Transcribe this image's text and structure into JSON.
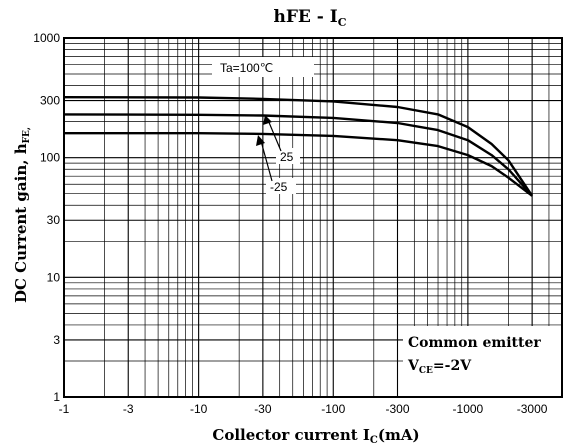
{
  "chart_data": {
    "type": "line",
    "title": {
      "main": "hFE - I",
      "sub": "C"
    },
    "xlabel": {
      "main": "Collector current I",
      "sub": "C",
      "tail": "(mA)"
    },
    "ylabel": {
      "main": "DC Current gain, h",
      "sub": "FE,"
    },
    "x_scale": "log",
    "y_scale": "log",
    "xlim": [
      -1,
      -5000
    ],
    "ylim": [
      1,
      1000
    ],
    "x_ticks": [
      {
        "value": 1,
        "label": "-1"
      },
      {
        "value": 3,
        "label": "-3"
      },
      {
        "value": 10,
        "label": "-10"
      },
      {
        "value": 30,
        "label": "-30"
      },
      {
        "value": 100,
        "label": "-100"
      },
      {
        "value": 300,
        "label": "-300"
      },
      {
        "value": 1000,
        "label": "-1000"
      },
      {
        "value": 3000,
        "label": "-3000"
      }
    ],
    "y_ticks": [
      {
        "value": 1,
        "label": "1"
      },
      {
        "value": 3,
        "label": "3"
      },
      {
        "value": 10,
        "label": "10"
      },
      {
        "value": 30,
        "label": "30"
      },
      {
        "value": 100,
        "label": "100"
      },
      {
        "value": 300,
        "label": "300"
      },
      {
        "value": 1000,
        "label": "1000"
      }
    ],
    "grid": true,
    "series": [
      {
        "label": "Ta=100℃",
        "x": [
          1,
          10,
          30,
          100,
          300,
          600,
          1000,
          1500,
          2000,
          3000
        ],
        "y": [
          320,
          318,
          310,
          295,
          265,
          230,
          180,
          130,
          95,
          48
        ]
      },
      {
        "label": "25",
        "x": [
          1,
          10,
          30,
          100,
          300,
          600,
          1000,
          1500,
          2000,
          3000
        ],
        "y": [
          230,
          228,
          225,
          215,
          195,
          170,
          140,
          105,
          80,
          48
        ]
      },
      {
        "label": "-25",
        "x": [
          1,
          10,
          30,
          100,
          300,
          600,
          1000,
          1500,
          2000,
          3000
        ],
        "y": [
          160,
          160,
          158,
          152,
          140,
          125,
          105,
          85,
          68,
          48
        ]
      }
    ],
    "annotations": [
      {
        "text": "Common emitter"
      },
      {
        "text_main": "V",
        "text_sub": "CE",
        "text_tail": "=-2V"
      }
    ]
  }
}
